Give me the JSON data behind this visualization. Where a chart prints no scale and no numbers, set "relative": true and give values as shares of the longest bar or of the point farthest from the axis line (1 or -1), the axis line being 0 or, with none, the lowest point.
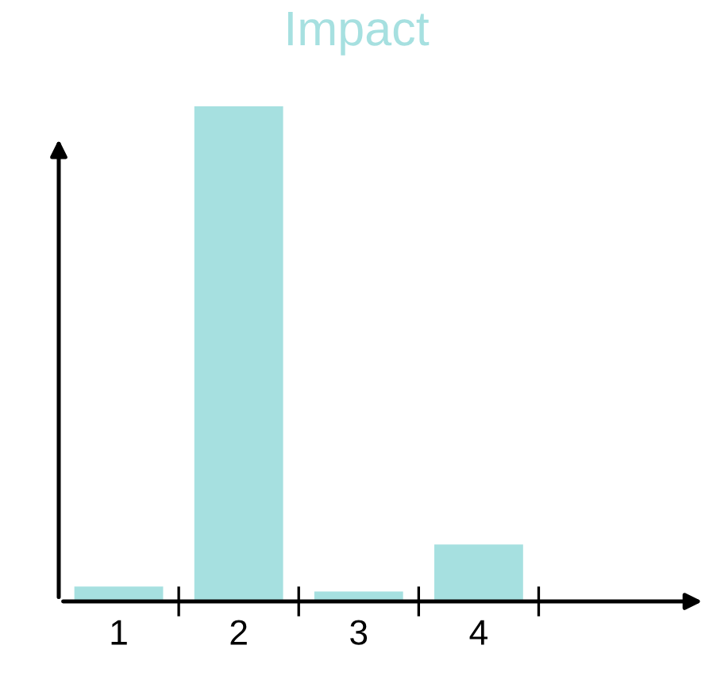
{
  "chart_data": {
    "type": "bar",
    "title": "Impact",
    "relative": true,
    "categories": [
      "1",
      "2",
      "3",
      "4"
    ],
    "values": [
      0.03,
      1,
      0.02,
      0.115
    ],
    "color": "#a6e0e0"
  }
}
